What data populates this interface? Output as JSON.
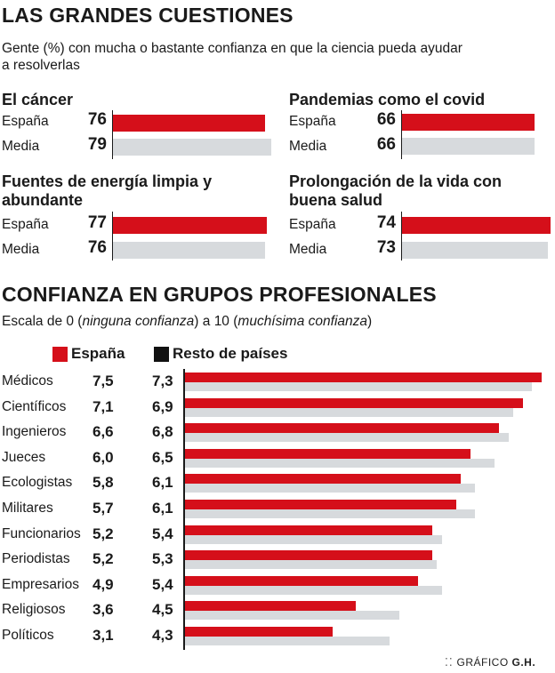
{
  "title": "LAS GRANDES CUESTIONES",
  "subtitle_line1": "Gente (%) con mucha o bastante confianza en que la ciencia pueda ayudar",
  "subtitle_line2": "a resolverlas",
  "labels": {
    "spain": "España",
    "avg": "Media"
  },
  "colors": {
    "spain": "#d50f1a",
    "avg": "#d7dadd",
    "rest": "#111111"
  },
  "section2_title": "CONFIANZA EN GRUPOS PROFESIONALES",
  "scale_prefix": "Escala de 0 (",
  "scale_italic1": "ninguna confianza",
  "scale_middle": ") a 10 (",
  "scale_italic2": "muchísima confianza",
  "scale_suffix": ")",
  "legend": {
    "spain": "España",
    "rest": "Resto de países"
  },
  "credit": "GRÁFICO",
  "credit_bold": "G.H.",
  "chart_data": [
    {
      "type": "bar",
      "title": "El cáncer",
      "series": [
        {
          "name": "España",
          "values": [
            76
          ]
        },
        {
          "name": "Media",
          "values": [
            79
          ]
        }
      ]
    },
    {
      "type": "bar",
      "title": "Pandemias como el covid",
      "series": [
        {
          "name": "España",
          "values": [
            66
          ]
        },
        {
          "name": "Media",
          "values": [
            66
          ]
        }
      ]
    },
    {
      "type": "bar",
      "title_line1": "Fuentes de energía limpia y",
      "title_line2": "abundante",
      "series": [
        {
          "name": "España",
          "values": [
            77
          ]
        },
        {
          "name": "Media",
          "values": [
            76
          ]
        }
      ]
    },
    {
      "type": "bar",
      "title_line1": "Prolongación de la vida con",
      "title_line2": "buena salud",
      "series": [
        {
          "name": "España",
          "values": [
            74
          ]
        },
        {
          "name": "Media",
          "values": [
            73
          ]
        }
      ]
    },
    {
      "type": "bar",
      "title": "Confianza en grupos profesionales",
      "xlim": [
        0,
        7.5
      ],
      "categories": [
        "Médicos",
        "Científicos",
        "Ingenieros",
        "Jueces",
        "Ecologistas",
        "Militares",
        "Funcionarios",
        "Periodistas",
        "Empresarios",
        "Religiosos",
        "Políticos"
      ],
      "values_display": {
        "spain": [
          "7,5",
          "7,1",
          "6,6",
          "6,0",
          "5,8",
          "5,7",
          "5,2",
          "5,2",
          "4,9",
          "3,6",
          "3,1"
        ],
        "rest": [
          "7,3",
          "6,9",
          "6,8",
          "6,5",
          "6,1",
          "6,1",
          "5,4",
          "5,3",
          "5,4",
          "4,5",
          "4,3"
        ]
      },
      "series": [
        {
          "name": "España",
          "values": [
            7.5,
            7.1,
            6.6,
            6.0,
            5.8,
            5.7,
            5.2,
            5.2,
            4.9,
            3.6,
            3.1
          ]
        },
        {
          "name": "Resto de países",
          "values": [
            7.3,
            6.9,
            6.8,
            6.5,
            6.1,
            6.1,
            5.4,
            5.3,
            5.4,
            4.5,
            4.3
          ]
        }
      ]
    }
  ]
}
